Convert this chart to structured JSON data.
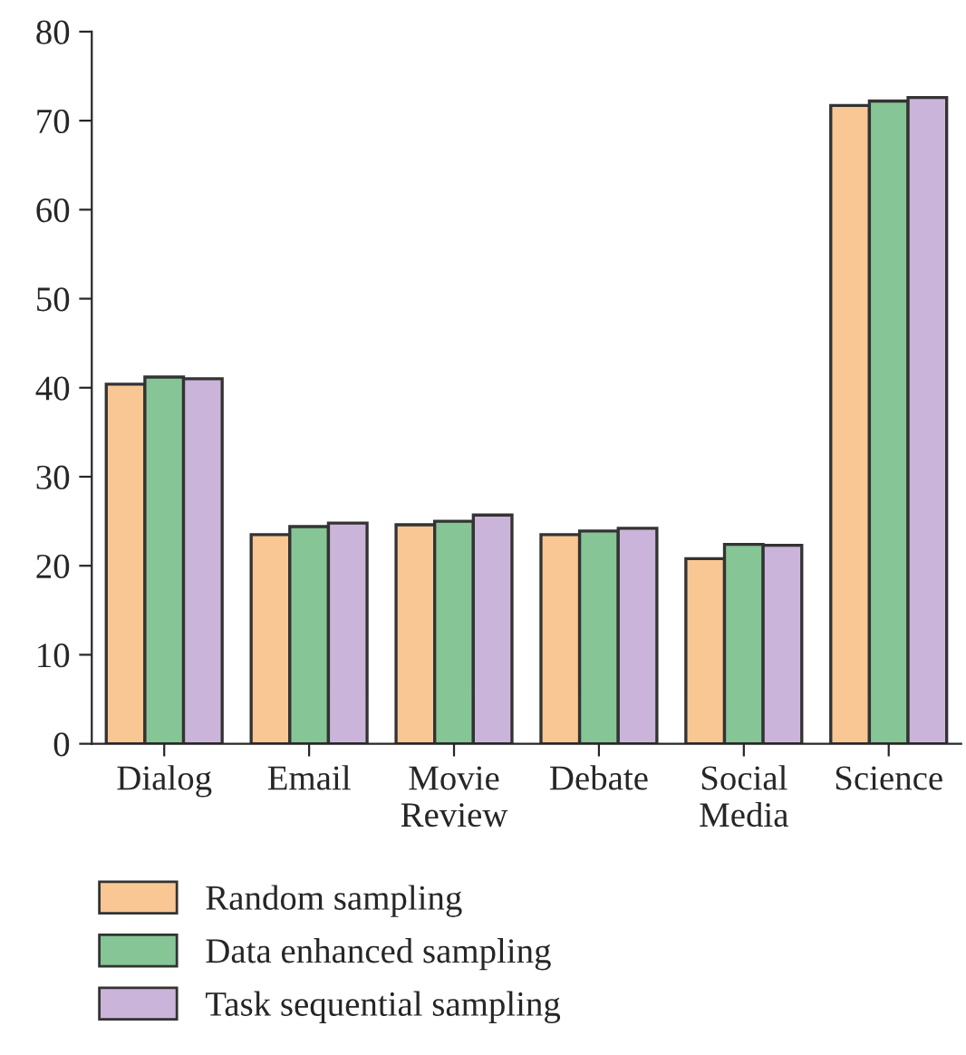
{
  "chart_data": {
    "type": "bar",
    "categories": [
      "Dialog",
      "Email",
      "Movie\nReview",
      "Debate",
      "Social\nMedia",
      "Science"
    ],
    "series": [
      {
        "name": "Random sampling",
        "color": "#f9c793",
        "values": [
          40.4,
          23.5,
          24.6,
          23.5,
          20.8,
          71.7
        ]
      },
      {
        "name": "Data enhanced sampling",
        "color": "#86c595",
        "values": [
          41.2,
          24.4,
          25.0,
          23.9,
          22.4,
          72.2
        ]
      },
      {
        "name": "Task sequential sampling",
        "color": "#cbb4d9",
        "values": [
          41.0,
          24.8,
          25.7,
          24.2,
          22.3,
          72.6
        ]
      }
    ],
    "ylim": [
      0,
      80
    ],
    "yticks": [
      0,
      10,
      20,
      30,
      40,
      50,
      60,
      70,
      80
    ],
    "grid": false,
    "legend": "bottom left"
  }
}
